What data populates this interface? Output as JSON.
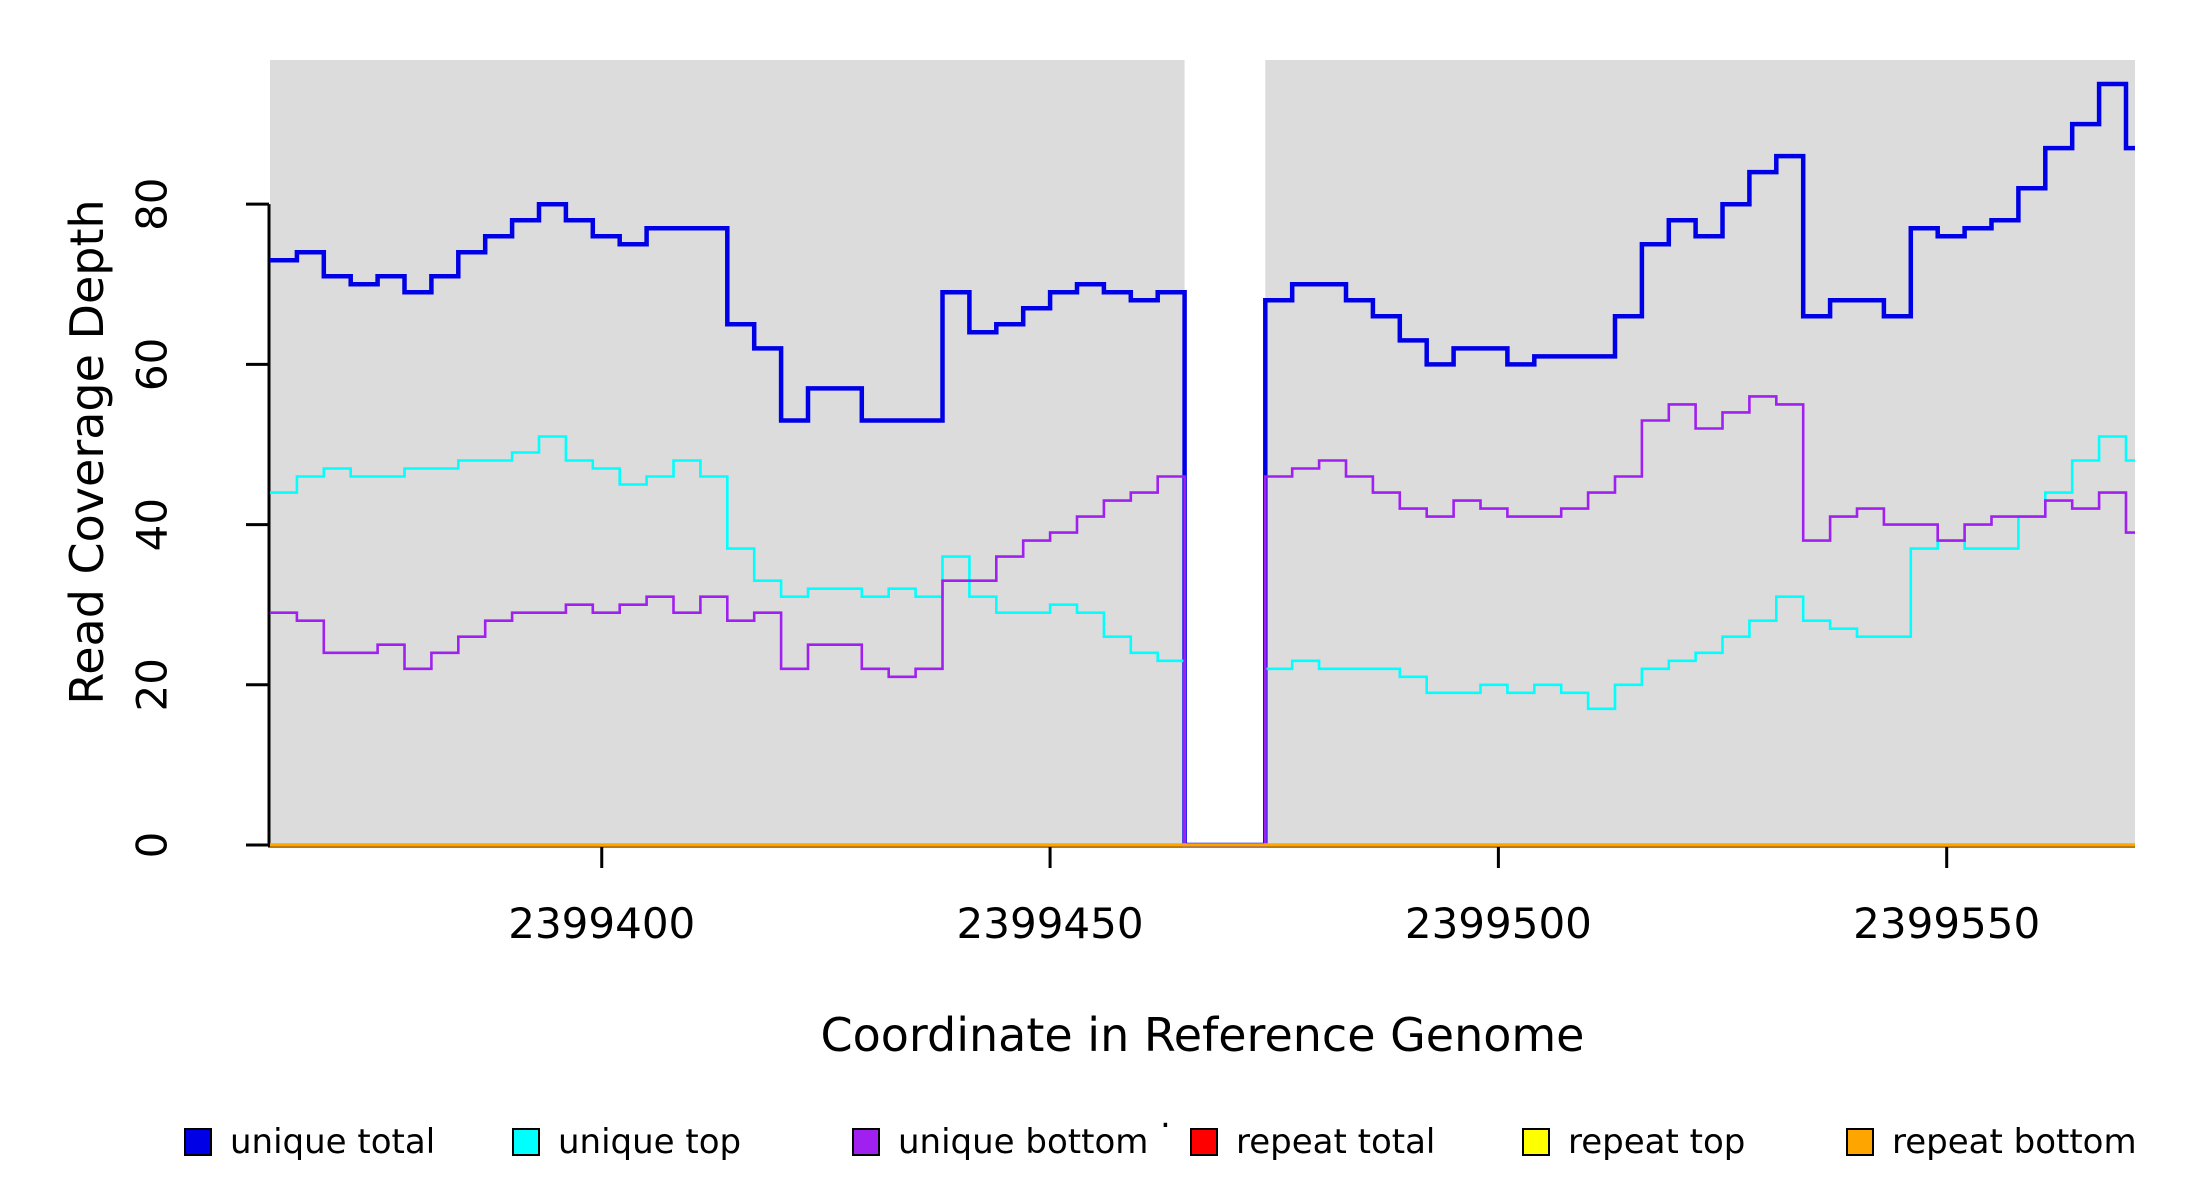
{
  "misc": {
    "stray_mark": "."
  },
  "chart_data": {
    "type": "line",
    "step": "post",
    "title": "",
    "xlabel": "Coordinate in Reference Genome",
    "ylabel": "Read Coverage Depth",
    "xlim": [
      2399363,
      2399571
    ],
    "ylim": [
      0,
      98
    ],
    "x_ticks": [
      2399400,
      2399450,
      2399500,
      2399550
    ],
    "y_ticks": [
      0,
      20,
      40,
      60,
      80
    ],
    "gap_region": [
      2399465,
      2399474
    ],
    "plot_bg": "#DCDCDC",
    "axis_color": "#000000",
    "grid": "off",
    "legend_position": "bottom",
    "x": [
      2399363,
      2399366,
      2399369,
      2399372,
      2399375,
      2399378,
      2399381,
      2399384,
      2399387,
      2399390,
      2399393,
      2399396,
      2399399,
      2399402,
      2399405,
      2399408,
      2399411,
      2399414,
      2399417,
      2399420,
      2399423,
      2399426,
      2399429,
      2399432,
      2399435,
      2399438,
      2399441,
      2399444,
      2399447,
      2399450,
      2399453,
      2399456,
      2399459,
      2399462,
      2399465,
      2399468,
      2399471,
      2399474,
      2399477,
      2399480,
      2399483,
      2399486,
      2399489,
      2399492,
      2399495,
      2399498,
      2399501,
      2399504,
      2399507,
      2399510,
      2399513,
      2399516,
      2399519,
      2399522,
      2399525,
      2399528,
      2399531,
      2399534,
      2399537,
      2399540,
      2399543,
      2399546,
      2399549,
      2399552,
      2399555,
      2399558,
      2399561,
      2399564,
      2399567,
      2399570
    ],
    "series": [
      {
        "name": "unique total",
        "color": "#0000E6",
        "values": [
          73,
          74,
          71,
          70,
          71,
          69,
          71,
          74,
          76,
          78,
          80,
          78,
          76,
          75,
          77,
          77,
          77,
          65,
          62,
          53,
          57,
          57,
          53,
          53,
          53,
          69,
          64,
          65,
          67,
          69,
          70,
          69,
          68,
          69,
          0,
          0,
          0,
          68,
          70,
          70,
          68,
          66,
          63,
          60,
          62,
          62,
          60,
          61,
          61,
          61,
          66,
          75,
          78,
          76,
          80,
          84,
          86,
          66,
          68,
          68,
          66,
          77,
          76,
          77,
          78,
          82,
          87,
          90,
          95,
          87
        ]
      },
      {
        "name": "unique top",
        "color": "#00FFFF",
        "values": [
          44,
          46,
          47,
          46,
          46,
          47,
          47,
          48,
          48,
          49,
          51,
          48,
          47,
          45,
          46,
          48,
          46,
          37,
          33,
          31,
          32,
          32,
          31,
          32,
          31,
          36,
          31,
          29,
          29,
          30,
          29,
          26,
          24,
          23,
          0,
          0,
          0,
          22,
          23,
          22,
          22,
          22,
          21,
          19,
          19,
          20,
          19,
          20,
          19,
          17,
          20,
          22,
          23,
          24,
          26,
          28,
          31,
          28,
          27,
          26,
          26,
          37,
          38,
          37,
          37,
          41,
          44,
          48,
          51,
          48
        ]
      },
      {
        "name": "unique bottom",
        "color": "#A020F0",
        "values": [
          29,
          28,
          24,
          24,
          25,
          22,
          24,
          26,
          28,
          29,
          29,
          30,
          29,
          30,
          31,
          29,
          31,
          28,
          29,
          22,
          25,
          25,
          22,
          21,
          22,
          33,
          33,
          36,
          38,
          39,
          41,
          43,
          44,
          46,
          0,
          0,
          0,
          46,
          47,
          48,
          46,
          44,
          42,
          41,
          43,
          42,
          41,
          41,
          42,
          44,
          46,
          53,
          55,
          52,
          54,
          56,
          55,
          38,
          41,
          42,
          40,
          40,
          38,
          40,
          41,
          41,
          43,
          42,
          44,
          39
        ]
      },
      {
        "name": "repeat total",
        "color": "#FF0000",
        "values": [
          0,
          0,
          0,
          0,
          0,
          0,
          0,
          0,
          0,
          0,
          0,
          0,
          0,
          0,
          0,
          0,
          0,
          0,
          0,
          0,
          0,
          0,
          0,
          0,
          0,
          0,
          0,
          0,
          0,
          0,
          0,
          0,
          0,
          0,
          0,
          0,
          0,
          0,
          0,
          0,
          0,
          0,
          0,
          0,
          0,
          0,
          0,
          0,
          0,
          0,
          0,
          0,
          0,
          0,
          0,
          0,
          0,
          0,
          0,
          0,
          0,
          0,
          0,
          0,
          0,
          0,
          0,
          0,
          0,
          0
        ]
      },
      {
        "name": "repeat top",
        "color": "#FFFF00",
        "values": [
          0,
          0,
          0,
          0,
          0,
          0,
          0,
          0,
          0,
          0,
          0,
          0,
          0,
          0,
          0,
          0,
          0,
          0,
          0,
          0,
          0,
          0,
          0,
          0,
          0,
          0,
          0,
          0,
          0,
          0,
          0,
          0,
          0,
          0,
          0,
          0,
          0,
          0,
          0,
          0,
          0,
          0,
          0,
          0,
          0,
          0,
          0,
          0,
          0,
          0,
          0,
          0,
          0,
          0,
          0,
          0,
          0,
          0,
          0,
          0,
          0,
          0,
          0,
          0,
          0,
          0,
          0,
          0,
          0,
          0
        ]
      },
      {
        "name": "repeat bottom",
        "color": "#FFA500",
        "values": [
          0,
          0,
          0,
          0,
          0,
          0,
          0,
          0,
          0,
          0,
          0,
          0,
          0,
          0,
          0,
          0,
          0,
          0,
          0,
          0,
          0,
          0,
          0,
          0,
          0,
          0,
          0,
          0,
          0,
          0,
          0,
          0,
          0,
          0,
          0,
          0,
          0,
          0,
          0,
          0,
          0,
          0,
          0,
          0,
          0,
          0,
          0,
          0,
          0,
          0,
          0,
          0,
          0,
          0,
          0,
          0,
          0,
          0,
          0,
          0,
          0,
          0,
          0,
          0,
          0,
          0,
          0,
          0,
          0,
          0
        ]
      }
    ]
  }
}
